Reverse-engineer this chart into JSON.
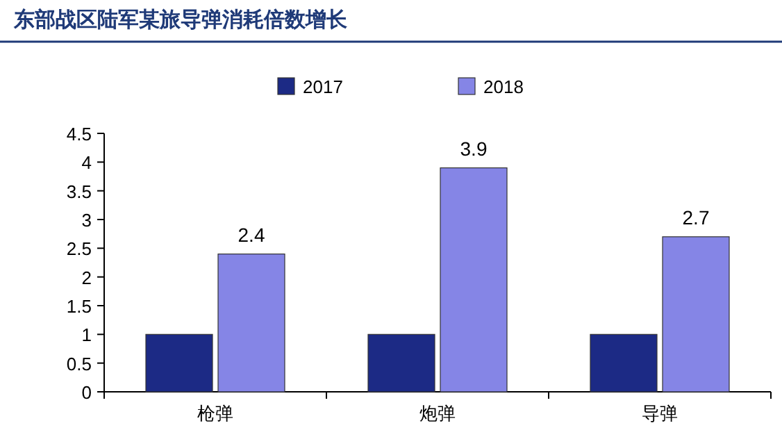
{
  "chart_data": {
    "type": "bar",
    "title": "东部战区陆军某旅导弹消耗倍数增长",
    "categories": [
      "枪弹",
      "炮弹",
      "导弹"
    ],
    "series": [
      {
        "name": "2017",
        "color": "#1c2a85",
        "values": [
          1,
          1,
          1
        ]
      },
      {
        "name": "2018",
        "color": "#8585e6",
        "values": [
          2.4,
          3.9,
          2.7
        ],
        "value_labels": [
          "2.4",
          "3.9",
          "2.7"
        ]
      }
    ],
    "ylim": [
      0,
      4.5
    ],
    "yticks": [
      0,
      0.5,
      1,
      1.5,
      2,
      2.5,
      3,
      3.5,
      4,
      4.5
    ],
    "grid": false,
    "legend": "top"
  }
}
